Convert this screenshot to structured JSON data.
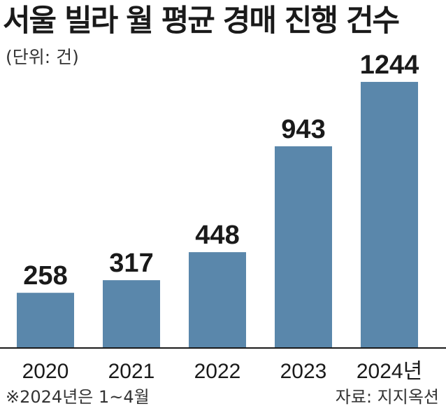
{
  "chart_data": {
    "type": "bar",
    "title": "서울 빌라 월 평균 경매 진행 건수",
    "unit_label": "(단위: 건)",
    "categories": [
      "2020",
      "2021",
      "2022",
      "2023",
      "2024년"
    ],
    "values": [
      258,
      317,
      448,
      943,
      1244
    ],
    "ylim": [
      0,
      1400
    ],
    "grid": false,
    "bar_color": "#5a87ab",
    "axis_color": "#1a1a1a",
    "note": "※2024년은 1~4월",
    "source": "자료: 지지옥션"
  }
}
